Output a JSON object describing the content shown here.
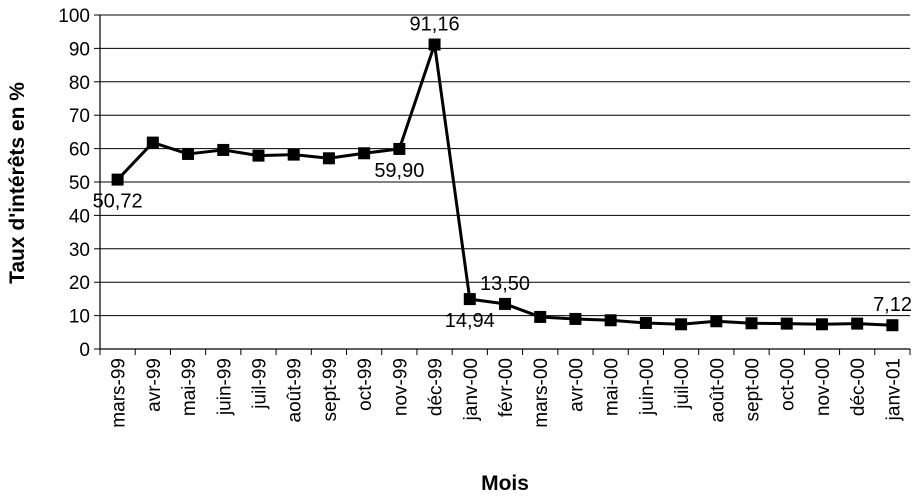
{
  "chart_data": {
    "type": "line",
    "title": "",
    "xlabel": "Mois",
    "ylabel": "Taux d'intérêts en %",
    "ylim": [
      0,
      100
    ],
    "yticks": [
      "0",
      "10",
      "20",
      "30",
      "40",
      "50",
      "60",
      "70",
      "80",
      "90",
      "100"
    ],
    "grid": true,
    "legend": "none",
    "categories": [
      "mars-99",
      "avr-99",
      "mai-99",
      "juin-99",
      "juil-99",
      "août-99",
      "sept-99",
      "oct-99",
      "nov-99",
      "déc-99",
      "janv-00",
      "févr-00",
      "mars-00",
      "avr-00",
      "mai-00",
      "juin-00",
      "juil-00",
      "août-00",
      "sept-00",
      "oct-00",
      "nov-00",
      "déc-00",
      "janv-01"
    ],
    "values": [
      50.72,
      61.8,
      58.4,
      59.6,
      57.9,
      58.2,
      57.1,
      58.6,
      59.9,
      91.16,
      14.94,
      13.5,
      9.6,
      9.0,
      8.6,
      7.8,
      7.4,
      8.3,
      7.7,
      7.6,
      7.4,
      7.6,
      7.12
    ],
    "data_labels": [
      {
        "index": 0,
        "text": "50,72",
        "position": "below"
      },
      {
        "index": 8,
        "text": "59,90",
        "position": "below"
      },
      {
        "index": 9,
        "text": "91,16",
        "position": "above"
      },
      {
        "index": 10,
        "text": "14,94",
        "position": "below"
      },
      {
        "index": 11,
        "text": "13,50",
        "position": "above"
      },
      {
        "index": 22,
        "text": "7,12",
        "position": "above"
      }
    ],
    "line_color": "#000000",
    "marker": "square"
  }
}
